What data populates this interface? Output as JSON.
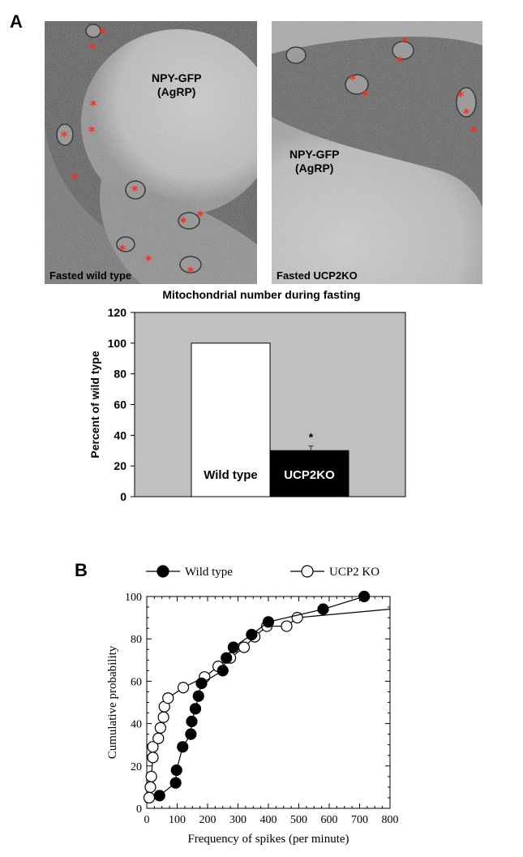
{
  "panels": {
    "a_label": "A",
    "b_label": "B"
  },
  "micrographs": [
    {
      "caption": "Fasted wild type",
      "cell_label_line1": "NPY-GFP",
      "cell_label_line2": "(AgRP)",
      "marker": "*",
      "marker_count": 12
    },
    {
      "caption": "Fasted UCP2KO",
      "cell_label_line1": "NPY-GFP",
      "cell_label_line2": "(AgRP)",
      "marker": "*",
      "marker_count": 7
    }
  ],
  "chart_data": [
    {
      "type": "bar",
      "title": "Mitochondrial number during fasting",
      "ylabel": "Percent of wild type",
      "xlabel": "",
      "categories": [
        "Wild type",
        "UCP2KO"
      ],
      "values": [
        100,
        30
      ],
      "errors": [
        0,
        3
      ],
      "significance": [
        "",
        "*"
      ],
      "bar_colors": [
        "#ffffff",
        "#000000"
      ],
      "label_colors": [
        "#000000",
        "#ffffff"
      ],
      "ylim": [
        0,
        120
      ],
      "yticks": [
        0,
        20,
        40,
        60,
        80,
        100,
        120
      ],
      "plot_background": "#c0c0c0",
      "grid": false
    },
    {
      "type": "line",
      "xlabel": "Frequency of spikes (per minute)",
      "ylabel": "Cumulative probability",
      "xlim": [
        0,
        800
      ],
      "ylim": [
        0,
        100
      ],
      "xticks": [
        0,
        100,
        200,
        300,
        400,
        500,
        600,
        700,
        800
      ],
      "yticks": [
        0,
        20,
        40,
        60,
        80,
        100
      ],
      "legend_placement": "top",
      "grid": false,
      "series": [
        {
          "name": "Wild type",
          "marker": "filled-circle",
          "color": "#000000",
          "points": [
            [
              42,
              6
            ],
            [
              95,
              12
            ],
            [
              98,
              18
            ],
            [
              118,
              29
            ],
            [
              145,
              35
            ],
            [
              148,
              41
            ],
            [
              160,
              47
            ],
            [
              170,
              53
            ],
            [
              180,
              59
            ],
            [
              250,
              65
            ],
            [
              262,
              71
            ],
            [
              285,
              76
            ],
            [
              345,
              82
            ],
            [
              400,
              88
            ],
            [
              580,
              94
            ],
            [
              715,
              100
            ]
          ],
          "line_end": [
            715,
            100
          ]
        },
        {
          "name": "UCP2 KO",
          "marker": "open-circle",
          "color": "#000000",
          "points": [
            [
              8,
              5
            ],
            [
              12,
              10
            ],
            [
              15,
              15
            ],
            [
              20,
              24
            ],
            [
              20,
              29
            ],
            [
              38,
              33
            ],
            [
              45,
              38
            ],
            [
              55,
              43
            ],
            [
              58,
              48
            ],
            [
              70,
              52
            ],
            [
              120,
              57
            ],
            [
              190,
              62
            ],
            [
              235,
              67
            ],
            [
              275,
              71
            ],
            [
              320,
              76
            ],
            [
              355,
              81
            ],
            [
              395,
              86
            ],
            [
              460,
              86
            ],
            [
              495,
              90
            ]
          ],
          "line_end": [
            800,
            94
          ]
        }
      ]
    }
  ]
}
